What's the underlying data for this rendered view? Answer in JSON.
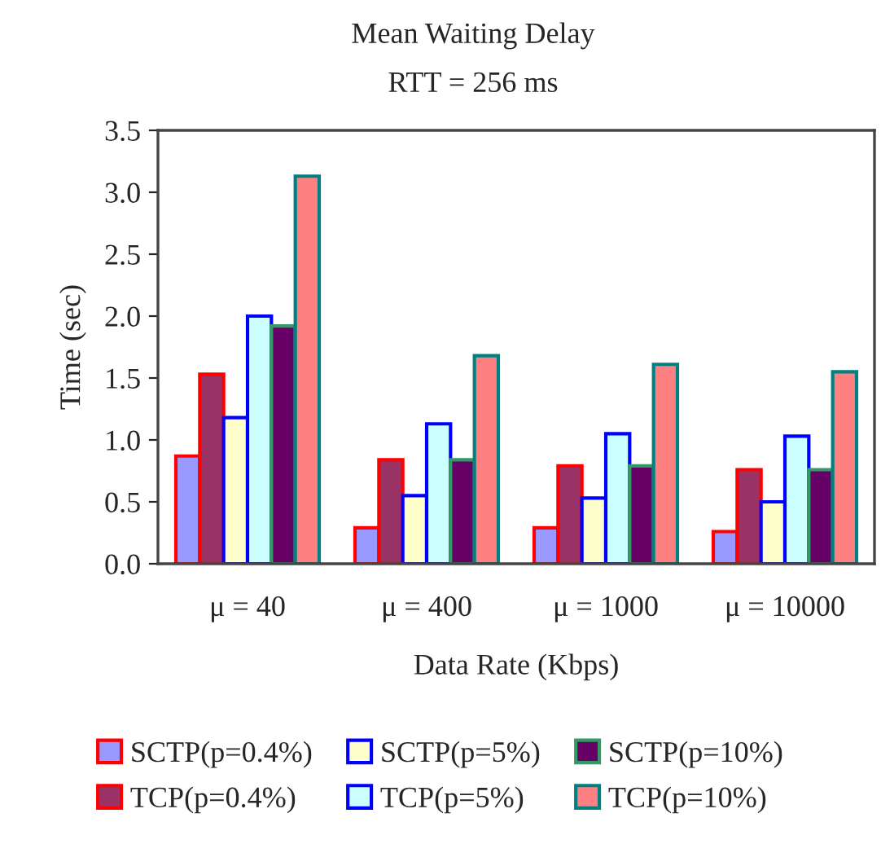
{
  "chart_data": {
    "type": "bar",
    "title": "Mean Waiting Delay",
    "subtitle": "RTT = 256 ms",
    "xlabel": "Data Rate (Kbps)",
    "ylabel": "Time (sec)",
    "categories": [
      "μ = 40",
      "μ = 400",
      "μ = 1000",
      "μ = 10000"
    ],
    "series": [
      {
        "name": "SCTP(p=0.4%)",
        "color": "#9999ff",
        "values": [
          0.87,
          0.29,
          0.29,
          0.26
        ]
      },
      {
        "name": "TCP(p=0.4%)",
        "color": "#993366",
        "values": [
          1.53,
          0.84,
          0.79,
          0.76
        ]
      },
      {
        "name": "SCTP(p=5%)",
        "color": "#ffffcc",
        "values": [
          1.18,
          0.55,
          0.53,
          0.5
        ]
      },
      {
        "name": "TCP(p=5%)",
        "color": "#ccffff",
        "values": [
          2.0,
          1.13,
          1.05,
          1.03
        ]
      },
      {
        "name": "SCTP(p=10%)",
        "color": "#660066",
        "values": [
          1.92,
          0.84,
          0.79,
          0.76
        ]
      },
      {
        "name": "TCP(p=10%)",
        "color": "#ff8080",
        "values": [
          3.13,
          1.68,
          1.61,
          1.55
        ]
      }
    ],
    "ylim": [
      0,
      3.5
    ],
    "yticks": [
      {
        "value": 0,
        "label": "0.0"
      },
      {
        "value": 0.5,
        "label": "0.5"
      },
      {
        "value": 1,
        "label": "1.0"
      },
      {
        "value": 1.5,
        "label": "1.5"
      },
      {
        "value": 2,
        "label": "2.0"
      },
      {
        "value": 2.5,
        "label": "2.5"
      },
      {
        "value": 3,
        "label": "3.0"
      },
      {
        "value": 3.5,
        "label": "3.5"
      }
    ],
    "grid": false,
    "legend": "bottom"
  }
}
